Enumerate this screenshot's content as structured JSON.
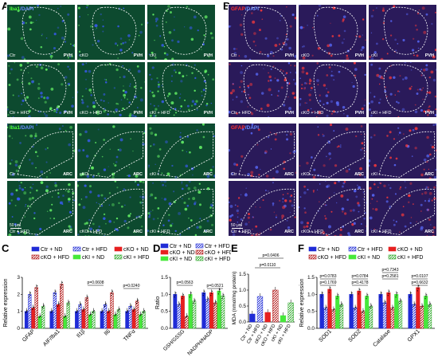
{
  "panels": {
    "A": {
      "letter": "A",
      "stain_label": [
        "Iba1",
        "/DAPI"
      ],
      "stain_colors": [
        "#4cff3a",
        "#6a8dff"
      ],
      "rows_pvh": [
        [
          {
            "group": "Ctr",
            "region": "PVH"
          },
          {
            "group": "cKO",
            "region": "PVH"
          },
          {
            "group": "cKI",
            "region": "PVH"
          }
        ],
        [
          {
            "group": "Ctr + HFD",
            "region": "PVH"
          },
          {
            "group": "cKO + HFD",
            "region": "PVH"
          },
          {
            "group": "cKI + HFD",
            "region": "PVH"
          }
        ]
      ],
      "rows_arc": [
        [
          {
            "group": "Ctr",
            "region": "ARC"
          },
          {
            "group": "cKO",
            "region": "ARC"
          },
          {
            "group": "cKI",
            "region": "ARC"
          }
        ],
        [
          {
            "group": "Ctr + HFD",
            "region": "ARC"
          },
          {
            "group": "cKO + HFD",
            "region": "ARC"
          },
          {
            "group": "cKI + HFD",
            "region": "ARC"
          }
        ]
      ],
      "scale_bar": "50 μm"
    },
    "B": {
      "letter": "B",
      "stain_label": [
        "GFAP",
        "/DAPI"
      ],
      "stain_colors": [
        "#ff3030",
        "#6a8dff"
      ],
      "rows_pvh": [
        [
          {
            "group": "Ctr",
            "region": "PVH"
          },
          {
            "group": "cKO",
            "region": "PVH"
          },
          {
            "group": "cKI",
            "region": "PVH"
          }
        ],
        [
          {
            "group": "Ctr + HFD",
            "region": "PVH"
          },
          {
            "group": "cKO + HFD",
            "region": "PVH"
          },
          {
            "group": "cKI + HFD",
            "region": "PVH"
          }
        ]
      ],
      "rows_arc": [
        [
          {
            "group": "Ctr",
            "region": "ARC"
          },
          {
            "group": "cKO",
            "region": "ARC"
          },
          {
            "group": "cKI",
            "region": "ARC"
          }
        ],
        [
          {
            "group": "Ctr + HFD",
            "region": "ARC"
          },
          {
            "group": "cKO + HFD",
            "region": "ARC"
          },
          {
            "group": "cKI + HFD",
            "region": "ARC"
          }
        ]
      ],
      "scale_bar": "50 μm"
    },
    "C": {
      "letter": "C"
    },
    "D": {
      "letter": "D"
    },
    "E": {
      "letter": "E"
    },
    "F": {
      "letter": "F"
    }
  },
  "colors": {
    "ctr_nd": "#1f2bd6",
    "ctr_hfd": "#1f2bd6",
    "cko_nd": "#e62020",
    "cko_hfd": "#b01010",
    "cki_nd": "#46e83a",
    "cki_hfd": "#2ea82a"
  },
  "legend": [
    "Ctr + ND",
    "Ctr + HFD",
    "cKO + ND",
    "cKO + HFD",
    "cKI + ND",
    "cKI + HFD"
  ],
  "chart_data": [
    {
      "panel": "C",
      "type": "bar",
      "ylabel": "Relative expression",
      "ylim": [
        0,
        3
      ],
      "yticks": [
        0,
        1,
        2,
        3
      ],
      "categories": [
        "GFAP",
        "AIF/Iba1",
        "Il1β",
        "Il6",
        "TNFα"
      ],
      "series": [
        {
          "name": "Ctr + ND",
          "values": [
            1.0,
            1.0,
            1.0,
            1.0,
            1.0
          ]
        },
        {
          "name": "Ctr + HFD",
          "values": [
            2.0,
            2.1,
            1.4,
            1.4,
            1.3
          ]
        },
        {
          "name": "cKO + ND",
          "values": [
            1.2,
            1.4,
            1.1,
            1.0,
            1.1
          ]
        },
        {
          "name": "cKO + HFD",
          "values": [
            2.4,
            2.6,
            1.8,
            2.1,
            1.6
          ]
        },
        {
          "name": "cKI + ND",
          "values": [
            0.7,
            0.7,
            0.8,
            0.8,
            0.8
          ]
        },
        {
          "name": "cKI + HFD",
          "values": [
            1.3,
            1.5,
            1.0,
            1.1,
            1.0
          ]
        }
      ],
      "annotations": [
        "p=0.0608",
        "p=0.0240"
      ]
    },
    {
      "panel": "D",
      "type": "bar",
      "ylabel": "Ratio",
      "ylim": [
        0.0,
        1.5
      ],
      "yticks": [
        0.0,
        0.5,
        1.0,
        1.5
      ],
      "categories": [
        "GSH/GSSG",
        "NADPH/NADP"
      ],
      "series": [
        {
          "name": "Ctr + ND",
          "values": [
            1.0,
            1.05
          ]
        },
        {
          "name": "Ctr + HFD",
          "values": [
            0.7,
            0.85
          ]
        },
        {
          "name": "cKO + ND",
          "values": [
            0.95,
            1.05
          ]
        },
        {
          "name": "cKO + HFD",
          "values": [
            0.35,
            0.75
          ]
        },
        {
          "name": "cKI + ND",
          "values": [
            1.0,
            1.1
          ]
        },
        {
          "name": "cKI + HFD",
          "values": [
            0.8,
            0.95
          ]
        }
      ],
      "annotations": [
        "p=0.0563",
        "p=0.0521"
      ]
    },
    {
      "panel": "E",
      "type": "bar",
      "ylabel": "MDA (nmol/mg protein)",
      "ylim": [
        0.0,
        1.5
      ],
      "yticks": [
        0.0,
        0.5,
        1.0,
        1.5
      ],
      "categories": [
        "Ctr + ND",
        "Ctr + HFD",
        "cKO + ND",
        "cKO + HFD",
        "cKI + ND",
        "cKI + HFD"
      ],
      "values": [
        0.25,
        0.8,
        0.3,
        1.0,
        0.2,
        0.6
      ],
      "annotations": [
        "p=0.0406",
        "p=0.0110"
      ]
    },
    {
      "panel": "F",
      "type": "bar",
      "ylabel": "Relative expression",
      "ylim": [
        0.0,
        1.5
      ],
      "yticks": [
        0.0,
        0.5,
        1.0,
        1.5
      ],
      "categories": [
        "SOD1",
        "SOD2",
        "Catalase",
        "GPX1"
      ],
      "series": [
        {
          "name": "Ctr + ND",
          "values": [
            1.0,
            1.0,
            1.0,
            1.0
          ]
        },
        {
          "name": "Ctr + HFD",
          "values": [
            0.6,
            0.6,
            0.75,
            0.7
          ]
        },
        {
          "name": "cKO + ND",
          "values": [
            1.15,
            1.1,
            1.05,
            1.2
          ]
        },
        {
          "name": "cKO + HFD",
          "values": [
            0.55,
            0.5,
            0.6,
            0.65
          ]
        },
        {
          "name": "cKI + ND",
          "values": [
            0.95,
            0.95,
            1.0,
            0.95
          ]
        },
        {
          "name": "cKI + HFD",
          "values": [
            0.7,
            0.65,
            0.8,
            0.7
          ]
        }
      ],
      "annotations": [
        "p=0.0783",
        "p=0.1769",
        "p=0.0784",
        "p=0.4178",
        "p=0.7343",
        "p=0.2581",
        "p=0.0107",
        "p=0.6632"
      ]
    }
  ]
}
